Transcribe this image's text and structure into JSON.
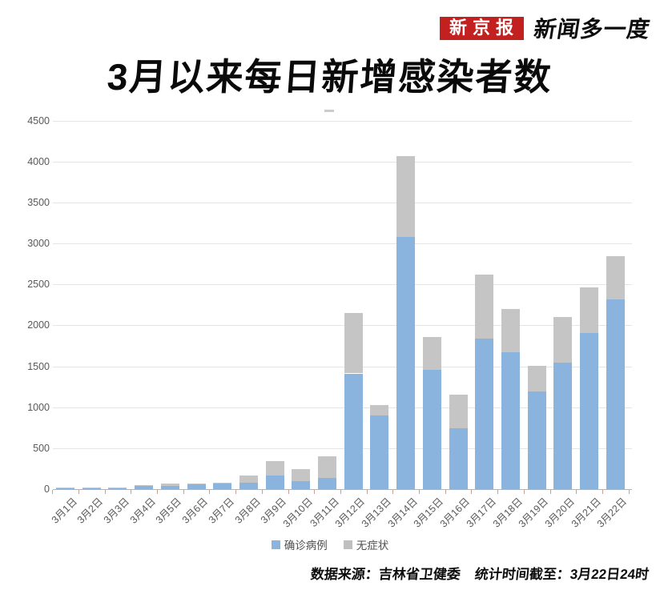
{
  "header": {
    "brand_badge": "新京报",
    "brand_badge_color": "#c3211f",
    "brand_tagline": "新闻多一度"
  },
  "title": "3月以来每日新增感染者数",
  "footer": {
    "source_label": "数据来源：吉林省卫健委",
    "cutoff_label": "统计时间截至：3月22日24时"
  },
  "chart_data": {
    "type": "bar",
    "stacked": true,
    "title": "3月以来每日新增感染者数",
    "categories": [
      "3月1日",
      "3月2日",
      "3月3日",
      "3月4日",
      "3月5日",
      "3月6日",
      "3月7日",
      "3月8日",
      "3月9日",
      "3月10日",
      "3月11日",
      "3月12日",
      "3月13日",
      "3月14日",
      "3月15日",
      "3月16日",
      "3月17日",
      "3月18日",
      "3月19日",
      "3月20日",
      "3月21日",
      "3月22日"
    ],
    "series": [
      {
        "name": "确诊病例",
        "color": "#8ab3de",
        "values": [
          3,
          4,
          7,
          45,
          40,
          60,
          65,
          80,
          165,
          100,
          134,
          1412,
          895,
          3076,
          1456,
          742,
          1834,
          1674,
          1189,
          1548,
          1902,
          2320
        ]
      },
      {
        "name": "无症状",
        "color": "#c5c5c5",
        "values": [
          1,
          2,
          3,
          5,
          30,
          12,
          12,
          90,
          180,
          145,
          267,
          742,
          131,
          991,
          397,
          415,
          782,
          524,
          312,
          549,
          558,
          528
        ]
      }
    ],
    "xlabel": "",
    "ylabel": "",
    "ylim": [
      0,
      4500
    ],
    "yticks": [
      0,
      500,
      1000,
      1500,
      2000,
      2500,
      3000,
      3500,
      4000,
      4500
    ],
    "grid": true,
    "legend_position": "bottom",
    "axis_label_color": "#595959",
    "gridline_color": "#e4e4e4"
  }
}
